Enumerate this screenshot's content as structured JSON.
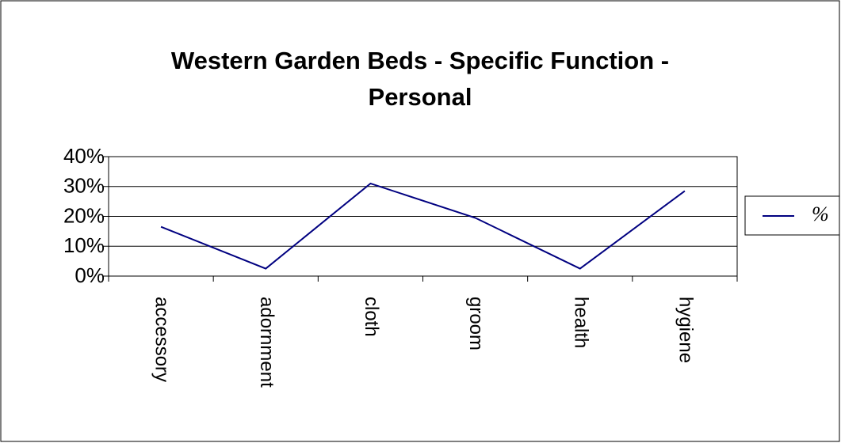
{
  "chart_data": {
    "type": "line",
    "title": "Western Garden Beds - Specific Function - Personal",
    "categories": [
      "accessory",
      "adornment",
      "cloth",
      "groom",
      "health",
      "hygiene"
    ],
    "series": [
      {
        "name": "%",
        "color": "#000080",
        "values": [
          16.5,
          2.5,
          31,
          19.5,
          2.5,
          28.5
        ]
      }
    ],
    "ylim": [
      0,
      40
    ],
    "yticks": [
      {
        "value": 0,
        "label": "0%"
      },
      {
        "value": 10,
        "label": "10%"
      },
      {
        "value": 20,
        "label": "20%"
      },
      {
        "value": 30,
        "label": "30%"
      },
      {
        "value": 40,
        "label": "40%"
      }
    ],
    "grid": true,
    "legend": "right"
  }
}
